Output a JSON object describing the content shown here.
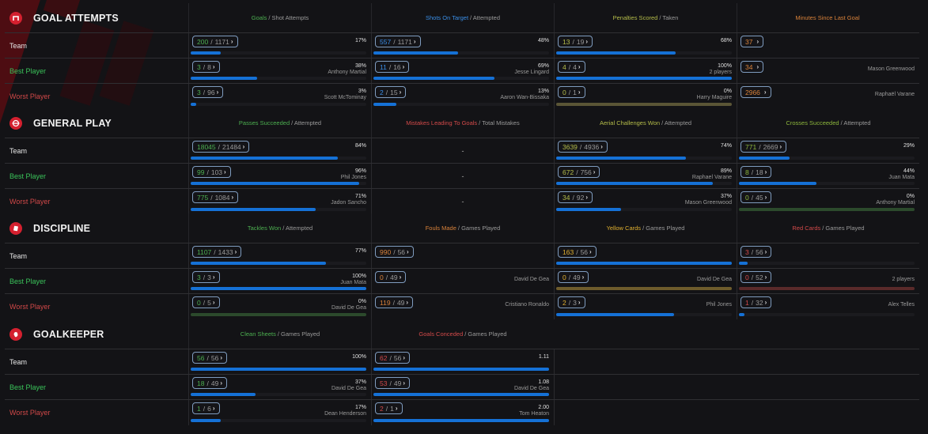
{
  "row_labels": {
    "team": "Team",
    "best": "Best Player",
    "worst": "Worst Player"
  },
  "sections": [
    {
      "title": "GOAL ATTEMPTS",
      "icon": "goal-net-icon",
      "columns": [
        {
          "highlight": "Goals",
          "rest": "/ Shot Attempts",
          "color": "green",
          "rows": [
            {
              "num": "200",
              "den": "1171",
              "pct": "17%",
              "player": "",
              "fill": 0.17
            },
            {
              "num": "3",
              "den": "8",
              "pct": "38%",
              "player": "Anthony Martial",
              "fill": 0.38
            },
            {
              "num": "3",
              "den": "96",
              "pct": "3%",
              "player": "Scott McTominay",
              "fill": 0.03
            }
          ]
        },
        {
          "highlight": "Shots On Target",
          "rest": "/ Attempted",
          "color": "blue",
          "rows": [
            {
              "num": "557",
              "den": "1171",
              "pct": "48%",
              "player": "",
              "fill": 0.48
            },
            {
              "num": "11",
              "den": "16",
              "pct": "69%",
              "player": "Jesse Lingard",
              "fill": 0.69
            },
            {
              "num": "2",
              "den": "15",
              "pct": "13%",
              "player": "Aaron Wan-Bissaka",
              "fill": 0.13
            }
          ]
        },
        {
          "highlight": "Penalties Scored",
          "rest": "/ Taken",
          "color": "yellowgreen",
          "rows": [
            {
              "num": "13",
              "den": "19",
              "pct": "68%",
              "player": "",
              "fill": 0.68
            },
            {
              "num": "4",
              "den": "4",
              "pct": "100%",
              "player": "2 players",
              "fill": 1.0
            },
            {
              "num": "0",
              "den": "1",
              "pct": "0%",
              "player": "Harry Maguire",
              "fill": 0,
              "zero": "olive"
            }
          ]
        },
        {
          "highlight": "Minutes Since Last Goal",
          "rest": "",
          "color": "orange",
          "nobar": true,
          "rows": [
            {
              "num": "37",
              "den": "",
              "pct": "",
              "player": ""
            },
            {
              "num": "34",
              "den": "",
              "pct": "",
              "player": "Mason Greenwood"
            },
            {
              "num": "2966",
              "den": "",
              "pct": "",
              "player": "Raphaël Varane"
            }
          ]
        }
      ]
    },
    {
      "title": "GENERAL PLAY",
      "icon": "pitch-icon",
      "columns": [
        {
          "highlight": "Passes Succeeded",
          "rest": "/ Attempted",
          "color": "green",
          "rows": [
            {
              "num": "18045",
              "den": "21484",
              "pct": "84%",
              "player": "",
              "fill": 0.84
            },
            {
              "num": "99",
              "den": "103",
              "pct": "96%",
              "player": "Phil Jones",
              "fill": 0.96
            },
            {
              "num": "775",
              "den": "1084",
              "pct": "71%",
              "player": "Jadon Sancho",
              "fill": 0.71
            }
          ]
        },
        {
          "highlight": "Mistakes Leading To Goals",
          "rest": "/ Total Mistakes",
          "color": "red",
          "dash": true,
          "rows": [
            {
              "value": "-"
            },
            {
              "value": "-"
            },
            {
              "value": "-"
            }
          ]
        },
        {
          "highlight": "Aerial Challenges Won",
          "rest": "/ Attempted",
          "color": "yellowgreen",
          "rows": [
            {
              "num": "3639",
              "den": "4936",
              "pct": "74%",
              "player": "",
              "fill": 0.74
            },
            {
              "num": "672",
              "den": "756",
              "pct": "89%",
              "player": "Raphael Varane",
              "fill": 0.89
            },
            {
              "num": "34",
              "den": "92",
              "pct": "37%",
              "player": "Mason Greenwood",
              "fill": 0.37
            }
          ]
        },
        {
          "highlight": "Crosses Succeeded",
          "rest": "/ Attempted",
          "color": "lime",
          "rows": [
            {
              "num": "771",
              "den": "2669",
              "pct": "29%",
              "player": "",
              "fill": 0.29
            },
            {
              "num": "8",
              "den": "18",
              "pct": "44%",
              "player": "Juan Mata",
              "fill": 0.44
            },
            {
              "num": "0",
              "den": "45",
              "pct": "0%",
              "player": "Anthony Martial",
              "fill": 0,
              "zero": "green"
            }
          ]
        }
      ]
    },
    {
      "title": "DISCIPLINE",
      "icon": "card-icon",
      "columns": [
        {
          "highlight": "Tackles Won",
          "rest": "/ Attempted",
          "color": "green",
          "rows": [
            {
              "num": "1107",
              "den": "1433",
              "pct": "77%",
              "player": "",
              "fill": 0.77
            },
            {
              "num": "3",
              "den": "3",
              "pct": "100%",
              "player": "Juan Mata",
              "fill": 1.0
            },
            {
              "num": "0",
              "den": "5",
              "pct": "0%",
              "player": "David De Gea",
              "fill": 0,
              "zero": "green"
            }
          ]
        },
        {
          "highlight": "Fouls Made",
          "rest": "/ Games Played",
          "color": "orange",
          "nobar": true,
          "rows": [
            {
              "num": "990",
              "den": "56",
              "pct": "",
              "player": ""
            },
            {
              "num": "0",
              "den": "49",
              "pct": "",
              "player": "David De Gea"
            },
            {
              "num": "119",
              "den": "49",
              "pct": "",
              "player": "Cristiano Ronaldo"
            }
          ]
        },
        {
          "highlight": "Yellow Cards",
          "rest": "/ Games Played",
          "color": "gold",
          "rows": [
            {
              "num": "163",
              "den": "56",
              "pct": "",
              "player": "",
              "fill": 1.0
            },
            {
              "num": "0",
              "den": "49",
              "pct": "",
              "player": "David De Gea",
              "fill": 0,
              "zero": "gold"
            },
            {
              "num": "2",
              "den": "3",
              "pct": "",
              "player": "Phil Jones",
              "fill": 0.67
            }
          ]
        },
        {
          "highlight": "Red Cards",
          "rest": "/ Games Played",
          "color": "red",
          "rows": [
            {
              "num": "3",
              "den": "56",
              "pct": "",
              "player": "",
              "fill": 0.05
            },
            {
              "num": "0",
              "den": "52",
              "pct": "",
              "player": "2 players",
              "fill": 0,
              "zero": "red"
            },
            {
              "num": "1",
              "den": "32",
              "pct": "",
              "player": "Alex Telles",
              "fill": 0.03
            }
          ]
        }
      ]
    },
    {
      "title": "GOALKEEPER",
      "icon": "glove-icon",
      "columns": [
        {
          "highlight": "Clean Sheets",
          "rest": "/ Games Played",
          "color": "green",
          "rows": [
            {
              "num": "56",
              "den": "56",
              "pct": "100%",
              "player": "",
              "fill": 1.0
            },
            {
              "num": "18",
              "den": "49",
              "pct": "37%",
              "player": "David De Gea",
              "fill": 0.37
            },
            {
              "num": "1",
              "den": "6",
              "pct": "17%",
              "player": "Dean Henderson",
              "fill": 0.17
            }
          ]
        },
        {
          "highlight": "Goals Conceded",
          "rest": "/ Games Played",
          "color": "red",
          "rows": [
            {
              "num": "62",
              "den": "56",
              "pct": "1.11",
              "player": "",
              "fill": 1.0
            },
            {
              "num": "53",
              "den": "49",
              "pct": "1.08",
              "player": "David De Gea",
              "fill": 1.0
            },
            {
              "num": "2",
              "den": "1",
              "pct": "2.00",
              "player": "Tom Heaton",
              "fill": 1.0
            }
          ]
        }
      ]
    }
  ]
}
